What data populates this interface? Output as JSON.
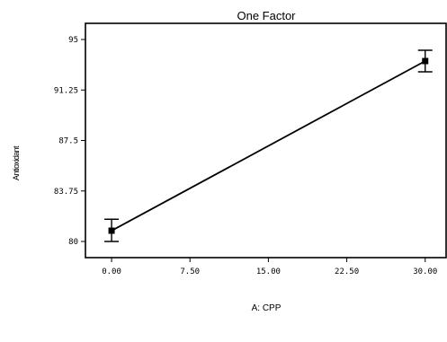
{
  "chart_data": {
    "type": "line",
    "title": "One Factor",
    "xlabel": "A: CPP",
    "ylabel": "Antioxidant",
    "xlim": [
      -2.5,
      32
    ],
    "ylim": [
      78.8,
      96.2
    ],
    "x_ticks": [
      0,
      7.5,
      15,
      22.5,
      30
    ],
    "x_tick_labels": [
      "0.00",
      "7.50",
      "15.00",
      "22.50",
      "30.00"
    ],
    "y_ticks": [
      80,
      83.75,
      87.5,
      91.25,
      95
    ],
    "y_tick_labels": [
      "80",
      "83.75",
      "87.5",
      "91.25",
      "95"
    ],
    "grid": false,
    "series": [
      {
        "x": [
          0,
          30
        ],
        "y": [
          80.8,
          93.4
        ],
        "error_low": [
          80.0,
          92.6
        ],
        "error_high": [
          81.65,
          94.2
        ]
      }
    ]
  }
}
